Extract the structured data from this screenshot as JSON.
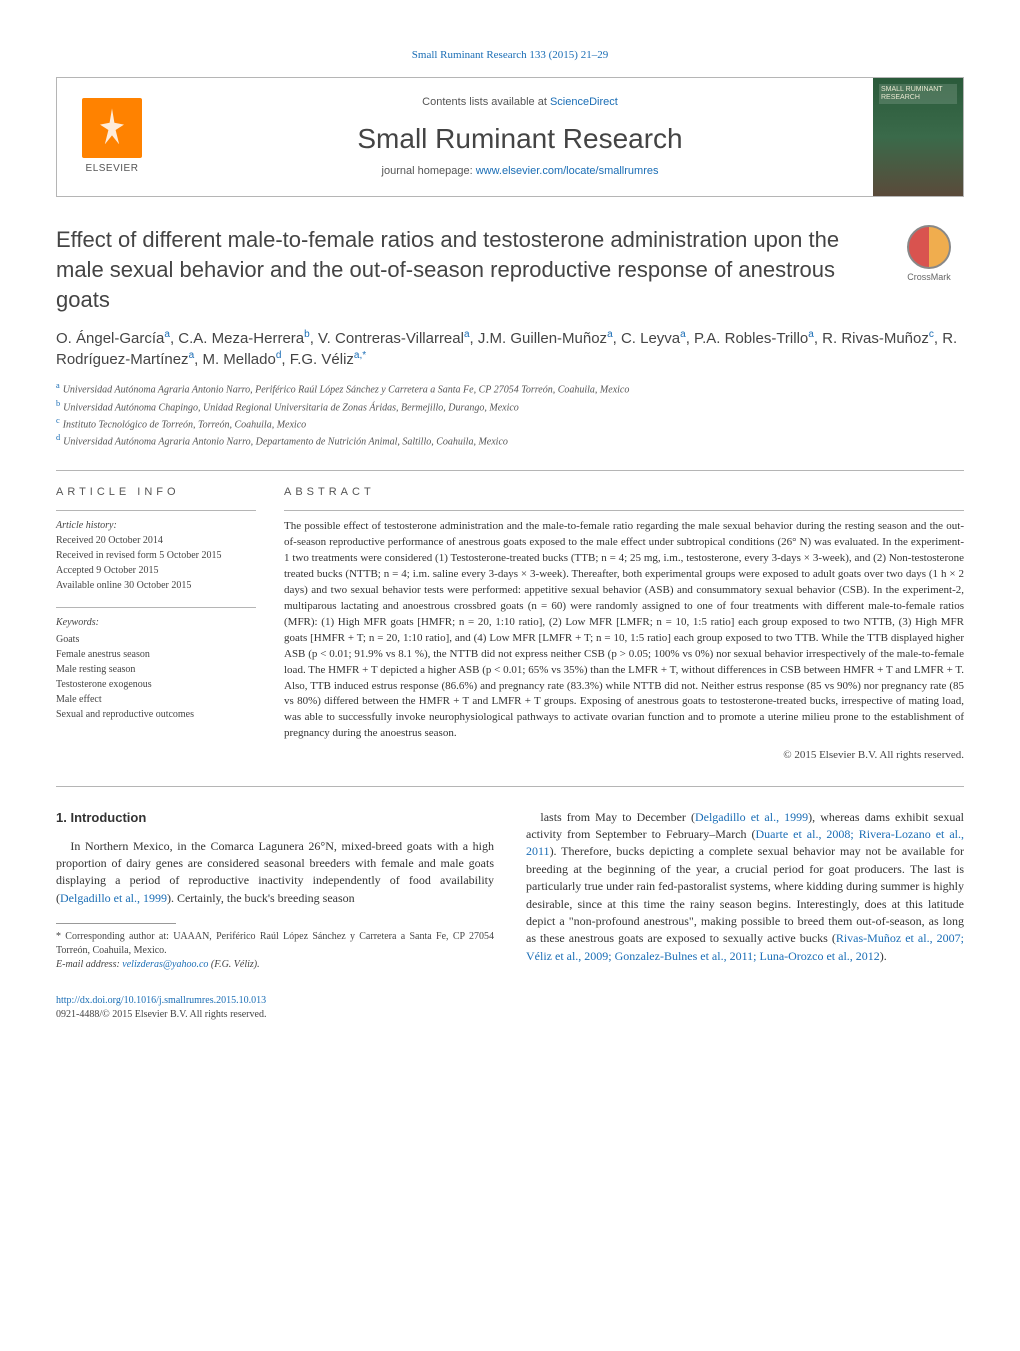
{
  "journal_header_link": "Small Ruminant Research 133 (2015) 21–29",
  "header": {
    "elsevier": "ELSEVIER",
    "contents_prefix": "Contents lists available at ",
    "contents_link": "ScienceDirect",
    "journal_title": "Small Ruminant Research",
    "homepage_prefix": "journal homepage: ",
    "homepage_link": "www.elsevier.com/locate/smallrumres",
    "cover_label": "SMALL RUMINANT RESEARCH"
  },
  "crossmark": "CrossMark",
  "title": "Effect of different male-to-female ratios and testosterone administration upon the male sexual behavior and the out-of-season reproductive response of anestrous goats",
  "authors_html": "O. Ángel-García<sup>a</sup>, C.A. Meza-Herrera<sup>b</sup>, V. Contreras-Villarreal<sup>a</sup>, J.M. Guillen-Muñoz<sup>a</sup>, C. Leyva<sup>a</sup>, P.A. Robles-Trillo<sup>a</sup>, R. Rivas-Muñoz<sup>c</sup>, R. Rodríguez-Martínez<sup>a</sup>, M. Mellado<sup>d</sup>, F.G. Véliz<sup>a,*</sup>",
  "affiliations": [
    {
      "sup": "a",
      "text": "Universidad Autónoma Agraria Antonio Narro, Periférico Raúl López Sánchez y Carretera a Santa Fe, CP 27054 Torreón, Coahuila, Mexico"
    },
    {
      "sup": "b",
      "text": "Universidad Autónoma Chapingo, Unidad Regional Universitaria de Zonas Áridas, Bermejillo, Durango, Mexico"
    },
    {
      "sup": "c",
      "text": "Instituto Tecnológico de Torreón, Torreón, Coahuila, Mexico"
    },
    {
      "sup": "d",
      "text": "Universidad Autónoma Agraria Antonio Narro, Departamento de Nutrición Animal, Saltillo, Coahuila, Mexico"
    }
  ],
  "article_info_heading": "ARTICLE INFO",
  "abstract_heading": "ABSTRACT",
  "history": {
    "label": "Article history:",
    "lines": [
      "Received 20 October 2014",
      "Received in revised form 5 October 2015",
      "Accepted 9 October 2015",
      "Available online 30 October 2015"
    ]
  },
  "keywords": {
    "label": "Keywords:",
    "items": [
      "Goats",
      "Female anestrus season",
      "Male resting season",
      "Testosterone exogenous",
      "Male effect",
      "Sexual and reproductive outcomes"
    ]
  },
  "abstract": "The possible effect of testosterone administration and the male-to-female ratio regarding the male sexual behavior during the resting season and the out-of-season reproductive performance of anestrous goats exposed to the male effect under subtropical conditions (26° N) was evaluated. In the experiment-1 two treatments were considered (1) Testosterone-treated bucks (TTB; n = 4; 25 mg, i.m., testosterone, every 3-days × 3-week), and (2) Non-testosterone treated bucks (NTTB; n = 4; i.m. saline every 3-days × 3-week). Thereafter, both experimental groups were exposed to adult goats over two days (1 h × 2 days) and two sexual behavior tests were performed: appetitive sexual behavior (ASB) and consummatory sexual behavior (CSB). In the experiment-2, multiparous lactating and anoestrous crossbred goats (n = 60) were randomly assigned to one of four treatments with different male-to-female ratios (MFR): (1) High MFR goats [HMFR; n = 20, 1:10 ratio], (2) Low MFR [LMFR; n = 10, 1:5 ratio] each group exposed to two NTTB, (3) High MFR goats [HMFR + T; n = 20, 1:10 ratio], and (4) Low MFR [LMFR + T; n = 10, 1:5 ratio] each group exposed to two TTB. While the TTB displayed higher ASB (p < 0.01; 91.9% vs 8.1 %), the NTTB did not express neither CSB (p > 0.05; 100% vs 0%) nor sexual behavior irrespectively of the male-to-female load. The HMFR + T depicted a higher ASB (p < 0.01; 65% vs 35%) than the LMFR + T, without differences in CSB between HMFR + T and LMFR + T. Also, TTB induced estrus response (86.6%) and pregnancy rate (83.3%) while NTTB did not. Neither estrus response (85 vs 90%) nor pregnancy rate (85 vs 80%) differed between the HMFR + T and LMFR + T groups. Exposing of anestrous goats to testosterone-treated bucks, irrespective of mating load, was able to successfully invoke neurophysiological pathways to activate ovarian function and to promote a uterine milieu prone to the establishment of pregnancy during the anoestrus season.",
  "copyright": "© 2015 Elsevier B.V. All rights reserved.",
  "intro_heading": "1. Introduction",
  "intro_col1": "In Northern Mexico, in the Comarca Lagunera 26°N, mixed-breed goats with a high proportion of dairy genes are considered seasonal breeders with female and male goats displaying a period of reproductive inactivity independently of food availability (",
  "intro_col1_cite": "Delgadillo et al., 1999",
  "intro_col1_tail": "). Certainly, the buck's breeding season",
  "intro_col2_a": "lasts from May to December (",
  "intro_col2_cite1": "Delgadillo et al., 1999",
  "intro_col2_b": "), whereas dams exhibit sexual activity from September to February–March (",
  "intro_col2_cite2": "Duarte et al., 2008; Rivera-Lozano et al., 2011",
  "intro_col2_c": "). Therefore, bucks depicting a complete sexual behavior may not be available for breeding at the beginning of the year, a crucial period for goat producers. The last is particularly true under rain fed-pastoralist systems, where kidding during summer is highly desirable, since at this time the rainy season begins. Interestingly, does at this latitude depict a \"non-profound anestrous\", making possible to breed them out-of-season, as long as these anestrous goats are exposed to sexually active bucks (",
  "intro_col2_cite3": "Rivas-Muñoz et al., 2007; Véliz et al., 2009; Gonzalez-Bulnes et al., 2011; Luna-Orozco et al., 2012",
  "intro_col2_d": ").",
  "footnote": {
    "corr": "* Corresponding author at: UAAAN, Periférico Raúl López Sánchez y Carretera a Santa Fe, CP 27054 Torreón, Coahuila, Mexico.",
    "email_label": "E-mail address: ",
    "email": "velizderas@yahoo.co",
    "email_name": " (F.G. Véliz)."
  },
  "bottom": {
    "doi": "http://dx.doi.org/10.1016/j.smallrumres.2015.10.013",
    "issn_line": "0921-4488/© 2015 Elsevier B.V. All rights reserved."
  },
  "colors": {
    "link": "#1a6db5",
    "elsevier_orange": "#ff8200",
    "border": "#b5b5b5",
    "text": "#333333"
  }
}
